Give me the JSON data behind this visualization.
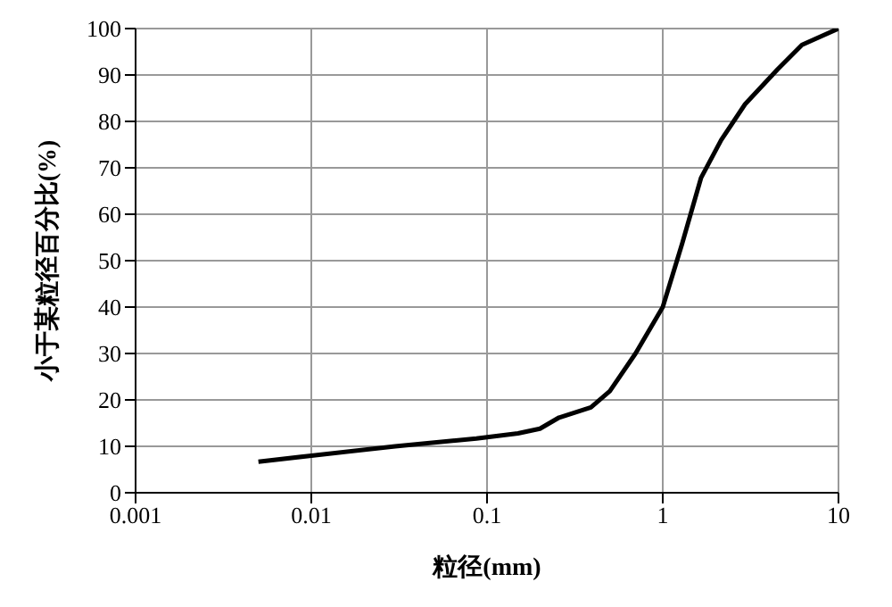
{
  "chart_data": {
    "type": "line",
    "xlabel": "粒径(mm)",
    "ylabel": "小于某粒径百分比(%)",
    "log": "x",
    "grid": true,
    "marker": "none",
    "line_style": "solid",
    "xlim": [
      0.001,
      10
    ],
    "xticks": [
      0.001,
      0.01,
      0.1,
      1,
      10
    ],
    "ylim": [
      0,
      100
    ],
    "yticks": [
      0,
      10,
      20,
      30,
      40,
      50,
      60,
      70,
      80,
      90,
      100
    ],
    "series": [
      {
        "color": "#000000",
        "x": [
          0.005,
          0.01,
          0.03,
          0.087,
          0.15,
          0.2,
          0.257,
          0.39,
          0.5,
          0.7,
          1.0,
          1.29,
          1.65,
          2.15,
          2.94,
          4.5,
          6.2,
          10
        ],
        "values": [
          6.7,
          8,
          10,
          11.7,
          12.8,
          13.8,
          16.2,
          18.4,
          21.9,
          30,
          40,
          53.7,
          67.8,
          76,
          83.7,
          91.2,
          96.5,
          100
        ]
      }
    ]
  }
}
